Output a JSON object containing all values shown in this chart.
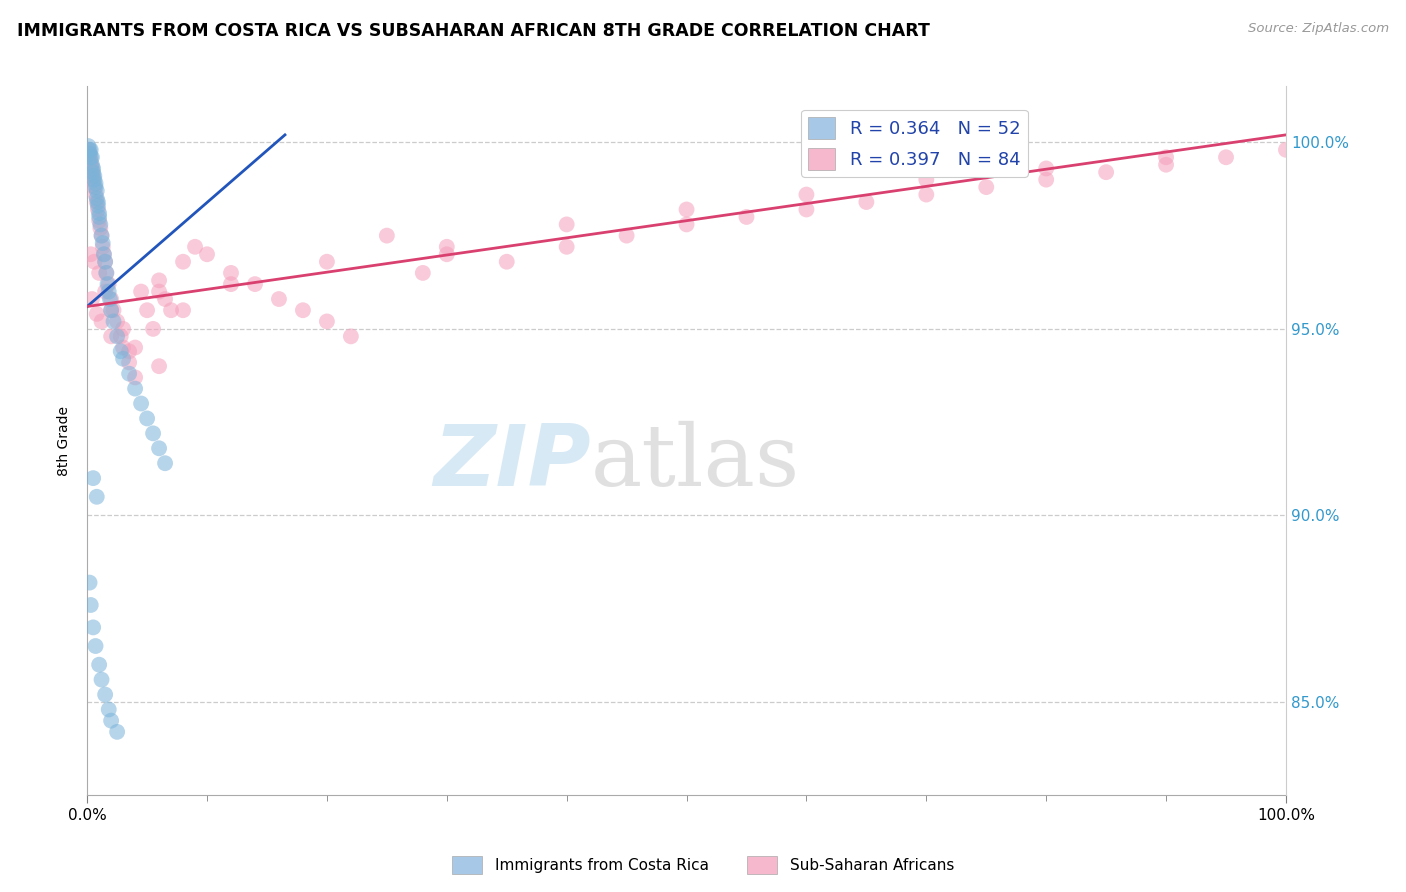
{
  "title": "IMMIGRANTS FROM COSTA RICA VS SUBSAHARAN AFRICAN 8TH GRADE CORRELATION CHART",
  "source": "Source: ZipAtlas.com",
  "ylabel": "8th Grade",
  "y_ticks": [
    0.85,
    0.9,
    0.95,
    1.0
  ],
  "y_tick_labels": [
    "85.0%",
    "90.0%",
    "95.0%",
    "100.0%"
  ],
  "x_min": 0.0,
  "x_max": 1.0,
  "y_min": 0.825,
  "y_max": 1.015,
  "watermark_zip": "ZIP",
  "watermark_atlas": "atlas",
  "blue_color": "#7ab3d9",
  "pink_color": "#f5a0bb",
  "blue_line_color": "#2255bb",
  "pink_line_color": "#d94070",
  "legend_r1": "R = 0.364   N = 52",
  "legend_r2": "R = 0.397   N = 84",
  "legend_color1": "#a8c8e8",
  "legend_color2": "#f5b8cc",
  "bottom_label1": "Immigrants from Costa Rica",
  "bottom_label2": "Sub-Saharan Africans",
  "cr_x": [
    0.001,
    0.002,
    0.002,
    0.003,
    0.003,
    0.004,
    0.004,
    0.005,
    0.005,
    0.006,
    0.006,
    0.007,
    0.007,
    0.008,
    0.008,
    0.009,
    0.009,
    0.01,
    0.01,
    0.011,
    0.012,
    0.013,
    0.014,
    0.015,
    0.016,
    0.017,
    0.018,
    0.019,
    0.02,
    0.022,
    0.025,
    0.028,
    0.03,
    0.035,
    0.04,
    0.045,
    0.05,
    0.055,
    0.06,
    0.065,
    0.002,
    0.003,
    0.005,
    0.007,
    0.01,
    0.012,
    0.015,
    0.018,
    0.02,
    0.025,
    0.005,
    0.008
  ],
  "cr_y": [
    0.999,
    0.998,
    0.997,
    0.996,
    0.998,
    0.994,
    0.996,
    0.992,
    0.993,
    0.991,
    0.99,
    0.989,
    0.988,
    0.987,
    0.985,
    0.983,
    0.984,
    0.981,
    0.98,
    0.978,
    0.975,
    0.973,
    0.97,
    0.968,
    0.965,
    0.962,
    0.96,
    0.958,
    0.955,
    0.952,
    0.948,
    0.944,
    0.942,
    0.938,
    0.934,
    0.93,
    0.926,
    0.922,
    0.918,
    0.914,
    0.882,
    0.876,
    0.87,
    0.865,
    0.86,
    0.856,
    0.852,
    0.848,
    0.845,
    0.842,
    0.91,
    0.905
  ],
  "ss_x": [
    0.001,
    0.002,
    0.002,
    0.003,
    0.003,
    0.004,
    0.004,
    0.005,
    0.005,
    0.006,
    0.007,
    0.008,
    0.009,
    0.01,
    0.011,
    0.012,
    0.013,
    0.014,
    0.015,
    0.016,
    0.018,
    0.02,
    0.022,
    0.025,
    0.028,
    0.03,
    0.035,
    0.04,
    0.045,
    0.05,
    0.055,
    0.06,
    0.065,
    0.07,
    0.08,
    0.09,
    0.1,
    0.12,
    0.14,
    0.16,
    0.18,
    0.2,
    0.22,
    0.25,
    0.28,
    0.3,
    0.35,
    0.4,
    0.45,
    0.5,
    0.55,
    0.6,
    0.65,
    0.7,
    0.75,
    0.8,
    0.85,
    0.9,
    0.95,
    1.0,
    0.003,
    0.006,
    0.01,
    0.015,
    0.02,
    0.03,
    0.04,
    0.06,
    0.08,
    0.12,
    0.2,
    0.3,
    0.4,
    0.5,
    0.6,
    0.7,
    0.8,
    0.9,
    0.004,
    0.008,
    0.012,
    0.02,
    0.035,
    0.06
  ],
  "ss_y": [
    0.998,
    0.996,
    0.997,
    0.994,
    0.995,
    0.992,
    0.993,
    0.99,
    0.991,
    0.988,
    0.986,
    0.984,
    0.982,
    0.979,
    0.977,
    0.975,
    0.972,
    0.97,
    0.968,
    0.965,
    0.962,
    0.958,
    0.955,
    0.952,
    0.948,
    0.945,
    0.941,
    0.937,
    0.96,
    0.955,
    0.95,
    0.963,
    0.958,
    0.955,
    0.968,
    0.972,
    0.97,
    0.965,
    0.962,
    0.958,
    0.955,
    0.952,
    0.948,
    0.975,
    0.965,
    0.97,
    0.968,
    0.972,
    0.975,
    0.978,
    0.98,
    0.982,
    0.984,
    0.986,
    0.988,
    0.99,
    0.992,
    0.994,
    0.996,
    0.998,
    0.97,
    0.968,
    0.965,
    0.96,
    0.955,
    0.95,
    0.945,
    0.96,
    0.955,
    0.962,
    0.968,
    0.972,
    0.978,
    0.982,
    0.986,
    0.99,
    0.993,
    0.996,
    0.958,
    0.954,
    0.952,
    0.948,
    0.944,
    0.94
  ],
  "blue_trend_x": [
    0.0,
    0.165
  ],
  "blue_trend_y": [
    0.956,
    1.002
  ],
  "pink_trend_x": [
    0.0,
    1.0
  ],
  "pink_trend_y": [
    0.956,
    1.002
  ]
}
